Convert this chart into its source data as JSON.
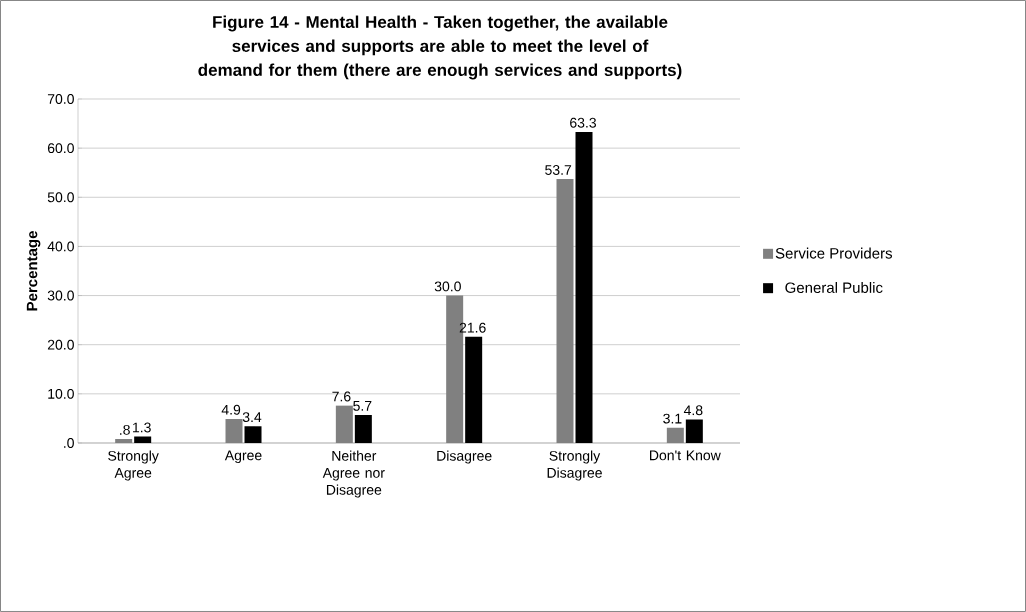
{
  "chart_data": {
    "type": "bar",
    "title": "Figure 14 - Mental Health - Taken together, the available services and supports are able to meet the level of demand for them (there are enough services and supports)",
    "ylabel": "Percentage",
    "categories": [
      "Strongly Agree",
      "Agree",
      "Neither Agree nor Disagree",
      "Disagree",
      "Strongly Disagree",
      "Don't Know"
    ],
    "series": [
      {
        "name": "Service Providers",
        "color": "#808080",
        "values": [
          0.8,
          4.9,
          7.6,
          30.0,
          53.7,
          3.1
        ],
        "value_labels": [
          ".8",
          "4.9",
          "7.6",
          "30.0",
          "53.7",
          "3.1"
        ]
      },
      {
        "name": "General Public",
        "color": "#000000",
        "values": [
          1.3,
          3.4,
          5.7,
          21.6,
          63.3,
          4.8
        ],
        "value_labels": [
          "1.3",
          "3.4",
          "5.7",
          "21.6",
          "63.3",
          "4.8"
        ]
      }
    ],
    "ylim": [
      0,
      70
    ],
    "yticks": [
      {
        "value": 0,
        "label": ".0"
      },
      {
        "value": 10,
        "label": "10.0"
      },
      {
        "value": 20,
        "label": "20.0"
      },
      {
        "value": 30,
        "label": "30.0"
      },
      {
        "value": 40,
        "label": "40.0"
      },
      {
        "value": 50,
        "label": "50.0"
      },
      {
        "value": 60,
        "label": "60.0"
      },
      {
        "value": 70,
        "label": "70.0"
      }
    ],
    "grid": "y",
    "legend": "right"
  }
}
